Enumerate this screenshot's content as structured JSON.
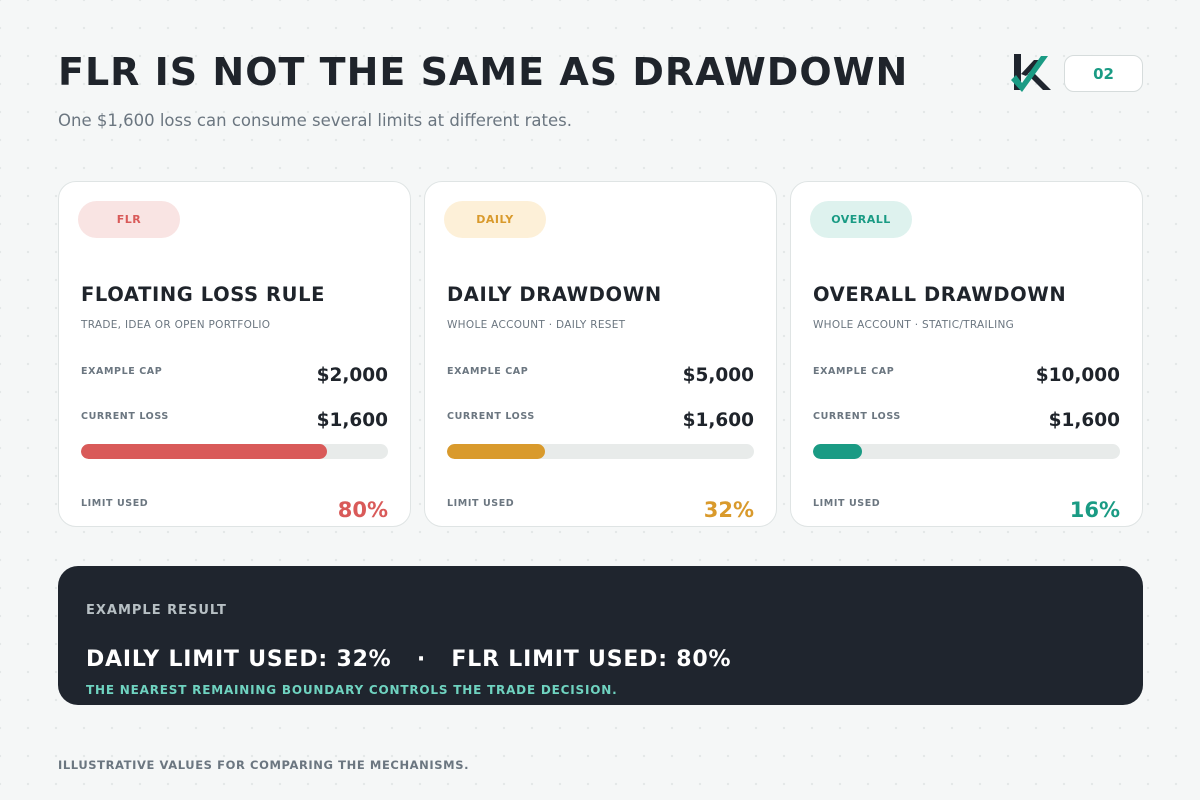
{
  "header": {
    "title": "FLR IS NOT THE SAME AS DRAWDOWN",
    "subtitle": "One $1,600 loss can consume several limits at different rates.",
    "page_number": "02",
    "logo_icon": "k-check-logo-icon"
  },
  "colors": {
    "flr": "#d95a59",
    "flr_pill_bg": "#f9e4e3",
    "daily": "#d99a2c",
    "daily_pill_bg": "#fdf0d8",
    "overall": "#1a9b84",
    "overall_pill_bg": "#def2ee",
    "dark_panel": "#1f252e",
    "accent_text": "#6fd3c0"
  },
  "labels": {
    "example_cap": "EXAMPLE CAP",
    "current_loss": "CURRENT LOSS",
    "limit_used": "LIMIT USED"
  },
  "cards": [
    {
      "tag": "FLR",
      "title": "FLOATING LOSS RULE",
      "subtitle": "TRADE, IDEA OR OPEN PORTFOLIO",
      "cap": "$2,000",
      "loss": "$1,600",
      "used_text": "80%",
      "used_fraction": 0.8
    },
    {
      "tag": "DAILY",
      "title": "DAILY DRAWDOWN",
      "subtitle": "WHOLE ACCOUNT · DAILY RESET",
      "cap": "$5,000",
      "loss": "$1,600",
      "used_text": "32%",
      "used_fraction": 0.32
    },
    {
      "tag": "OVERALL",
      "title": "OVERALL DRAWDOWN",
      "subtitle": "WHOLE ACCOUNT · STATIC/TRAILING",
      "cap": "$10,000",
      "loss": "$1,600",
      "used_text": "16%",
      "used_fraction": 0.16
    }
  ],
  "result": {
    "label": "EXAMPLE RESULT",
    "main": "DAILY LIMIT USED: 32%   ·   FLR LIMIT USED: 80%",
    "note": "THE NEAREST REMAINING BOUNDARY CONTROLS THE TRADE DECISION."
  },
  "footnote": "ILLUSTRATIVE VALUES FOR COMPARING THE MECHANISMS."
}
